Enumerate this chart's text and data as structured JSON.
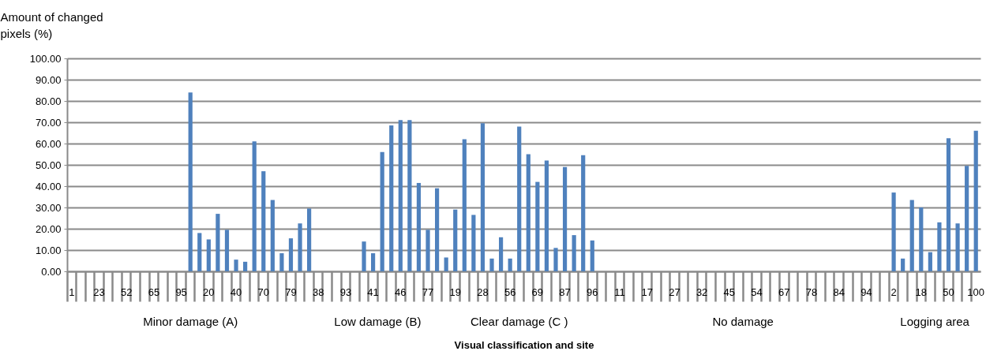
{
  "chart_data": {
    "type": "bar",
    "xlabel": "Visual classification and site",
    "ylabel": "Amount of changed pixels (%)",
    "categories": [
      "1",
      null,
      null,
      "23",
      null,
      null,
      "52",
      null,
      null,
      "65",
      null,
      null,
      "95",
      null,
      null,
      "20",
      null,
      null,
      "40",
      null,
      null,
      "70",
      null,
      null,
      "79",
      null,
      null,
      "38",
      null,
      null,
      "93",
      null,
      null,
      "41",
      null,
      null,
      "46",
      null,
      null,
      "77",
      null,
      null,
      "19",
      null,
      null,
      "28",
      null,
      null,
      "56",
      null,
      null,
      "69",
      null,
      null,
      "87",
      null,
      null,
      "96",
      null,
      null,
      "11",
      null,
      null,
      "17",
      null,
      null,
      "27",
      null,
      null,
      "32",
      null,
      null,
      "45",
      null,
      null,
      "54",
      null,
      null,
      "67",
      null,
      null,
      "78",
      null,
      null,
      "84",
      null,
      null,
      "94",
      null,
      null,
      "2",
      null,
      null,
      "18",
      null,
      null,
      "50",
      null,
      null,
      "100"
    ],
    "values": [
      0,
      0,
      0,
      0,
      0,
      0,
      0,
      0,
      0,
      0,
      0,
      0,
      0,
      84,
      18,
      15,
      27,
      19.5,
      5.5,
      4.5,
      61,
      47,
      33.5,
      8.5,
      15.5,
      22.5,
      29.5,
      0,
      0,
      0,
      0,
      0,
      14,
      8.5,
      56,
      68.5,
      71,
      71,
      41.5,
      19.5,
      39,
      6.5,
      29,
      62,
      26.5,
      69.5,
      6,
      16,
      6,
      68,
      55,
      42,
      52,
      11,
      49,
      17,
      54.5,
      14.5,
      0,
      0,
      0,
      0,
      0,
      0,
      0,
      0,
      0,
      0,
      0,
      0,
      0,
      0,
      0,
      0,
      0,
      0,
      0,
      0,
      0,
      0,
      0,
      0,
      0,
      0,
      0,
      0,
      0,
      0,
      0,
      0,
      37,
      6,
      33.5,
      30,
      9,
      23,
      62.5,
      22.5,
      49.5,
      66
    ],
    "color": "#4f81bd",
    "ylim": [
      0,
      100
    ],
    "yticks": [
      {
        "value": 0,
        "label": "0.00"
      },
      {
        "value": 10,
        "label": "10.00"
      },
      {
        "value": 20,
        "label": "20.00"
      },
      {
        "value": 30,
        "label": "30.00"
      },
      {
        "value": 40,
        "label": "40.00"
      },
      {
        "value": 50,
        "label": "50.00"
      },
      {
        "value": 60,
        "label": "60.00"
      },
      {
        "value": 70,
        "label": "70.00"
      },
      {
        "value": 80,
        "label": "80.00"
      },
      {
        "value": 90,
        "label": "90.00"
      },
      {
        "value": 100,
        "label": "100.00"
      }
    ],
    "grid": "y",
    "annotations": [
      "Minor damage  (A)",
      "Low damage  (B)",
      "Clear damage  (C )",
      "No damage",
      "Logging area"
    ]
  }
}
